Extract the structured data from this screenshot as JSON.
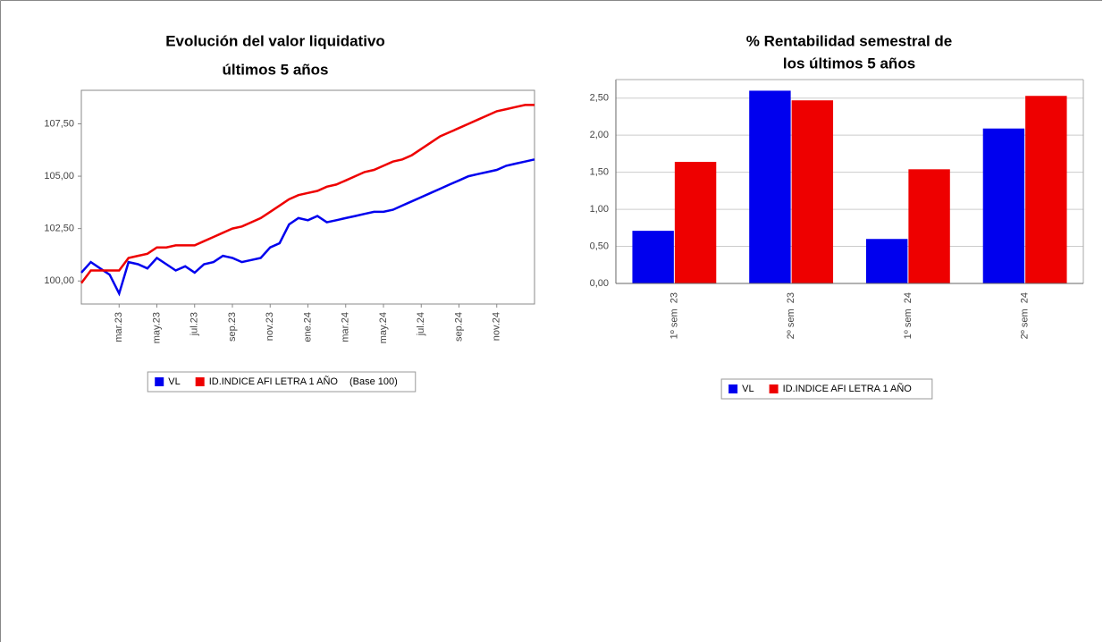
{
  "chart_data": [
    {
      "type": "line",
      "title": [
        "Evolución del valor liquidativo",
        "últimos 5 años"
      ],
      "note": "(Base 100)",
      "x": [
        0,
        0.5,
        1,
        1.5,
        2,
        2.5,
        3,
        3.5,
        4,
        4.5,
        5,
        5.5,
        6,
        6.5,
        7,
        7.5,
        8,
        8.5,
        9,
        9.5,
        10,
        10.5,
        11,
        11.5,
        12,
        12.5,
        13,
        13.5,
        14,
        14.5,
        15,
        15.5,
        16,
        16.5,
        17,
        17.5,
        18,
        18.5,
        19,
        19.5,
        20,
        20.5,
        21,
        21.5,
        22,
        22.5,
        23,
        23.5,
        24
      ],
      "xlim": [
        0,
        24
      ],
      "xticks": [
        {
          "value": 2,
          "label": "mar.23"
        },
        {
          "value": 4,
          "label": "may.23"
        },
        {
          "value": 6,
          "label": "jul.23"
        },
        {
          "value": 8,
          "label": "sep.23"
        },
        {
          "value": 10,
          "label": "nov.23"
        },
        {
          "value": 12,
          "label": "ene.24"
        },
        {
          "value": 14,
          "label": "mar.24"
        },
        {
          "value": 16,
          "label": "may.24"
        },
        {
          "value": 18,
          "label": "jul.24"
        },
        {
          "value": 20,
          "label": "sep.24"
        },
        {
          "value": 22,
          "label": "nov.24"
        }
      ],
      "ylim": [
        98.9,
        109.1
      ],
      "yticks": [
        {
          "value": 100,
          "label": "100,00"
        },
        {
          "value": 102.5,
          "label": "102,50"
        },
        {
          "value": 105,
          "label": "105,00"
        },
        {
          "value": 107.5,
          "label": "107,50"
        }
      ],
      "grid": false,
      "series": [
        {
          "name": "VL",
          "color": "#0000ee",
          "values": [
            100.4,
            100.9,
            100.6,
            100.3,
            99.4,
            100.9,
            100.8,
            100.6,
            101.1,
            100.8,
            100.5,
            100.7,
            100.4,
            100.8,
            100.9,
            101.2,
            101.1,
            100.9,
            101.0,
            101.1,
            101.6,
            101.8,
            102.7,
            103.0,
            102.9,
            103.1,
            102.8,
            102.9,
            103.0,
            103.1,
            103.2,
            103.3,
            103.3,
            103.4,
            103.6,
            103.8,
            104.0,
            104.2,
            104.4,
            104.6,
            104.8,
            105.0,
            105.1,
            105.2,
            105.3,
            105.5,
            105.6,
            105.7,
            105.8
          ]
        },
        {
          "name": "ID.INDICE AFI LETRA 1 AÑO",
          "color": "#ee0000",
          "values": [
            99.9,
            100.5,
            100.5,
            100.5,
            100.5,
            101.1,
            101.2,
            101.3,
            101.6,
            101.6,
            101.7,
            101.7,
            101.7,
            101.9,
            102.1,
            102.3,
            102.5,
            102.6,
            102.8,
            103.0,
            103.3,
            103.6,
            103.9,
            104.1,
            104.2,
            104.3,
            104.5,
            104.6,
            104.8,
            105.0,
            105.2,
            105.3,
            105.5,
            105.7,
            105.8,
            106.0,
            106.3,
            106.6,
            106.9,
            107.1,
            107.3,
            107.5,
            107.7,
            107.9,
            108.1,
            108.2,
            108.3,
            108.4,
            108.4
          ]
        }
      ]
    },
    {
      "type": "bar",
      "title": [
        "% Rentabilidad semestral de",
        "los últimos 5 años"
      ],
      "categories": [
        "1º sem  23",
        "2º sem  23",
        "1º sem  24",
        "2º sem  24"
      ],
      "ylim": [
        0,
        2.75
      ],
      "yticks": [
        {
          "value": 0,
          "label": "0,00"
        },
        {
          "value": 0.5,
          "label": "0,50"
        },
        {
          "value": 1,
          "label": "1,00"
        },
        {
          "value": 1.5,
          "label": "1,50"
        },
        {
          "value": 2,
          "label": "2,00"
        },
        {
          "value": 2.5,
          "label": "2,50"
        }
      ],
      "grid": true,
      "series": [
        {
          "name": "VL",
          "color": "#0000ee",
          "values": [
            0.71,
            2.6,
            0.6,
            2.09
          ]
        },
        {
          "name": "ID.INDICE AFI LETRA 1 AÑO",
          "color": "#ee0000",
          "values": [
            1.64,
            2.47,
            1.54,
            2.53
          ]
        }
      ]
    }
  ]
}
